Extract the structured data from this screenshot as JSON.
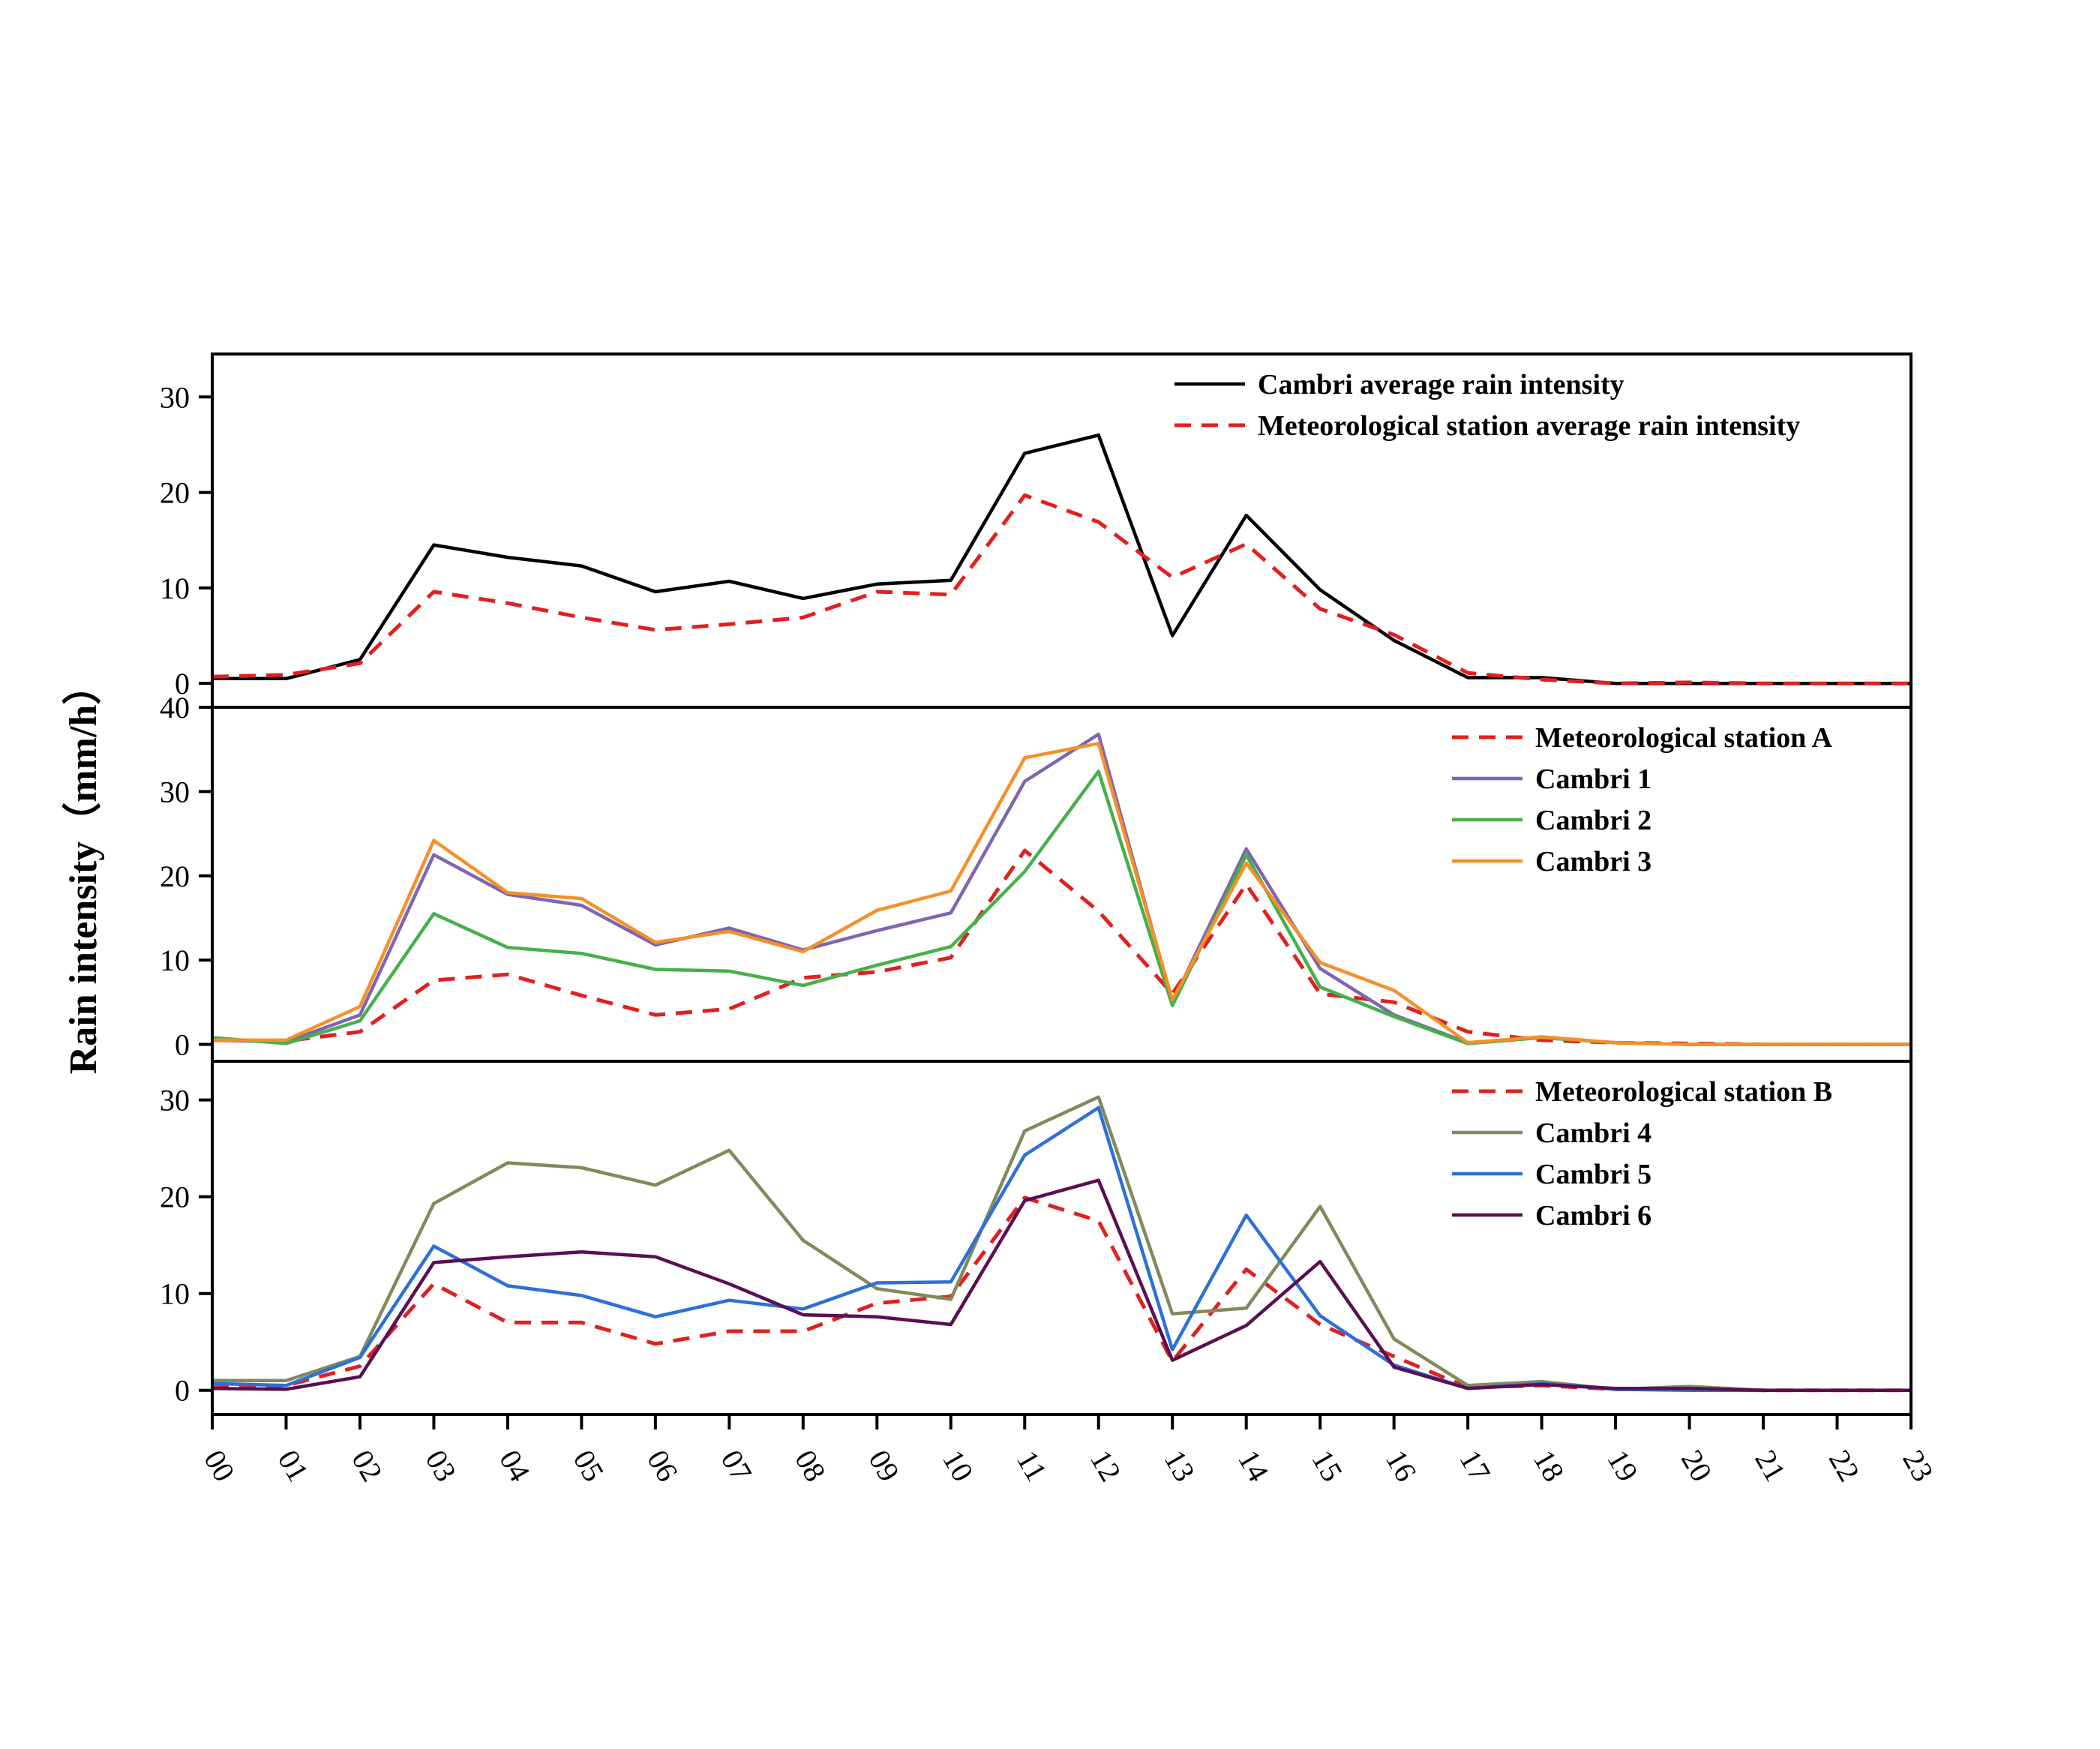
{
  "chart_data": {
    "type": "line",
    "ylabel": "Rain intensity（mm/h）",
    "x": [
      "00",
      "01",
      "02",
      "03",
      "04",
      "05",
      "06",
      "07",
      "08",
      "09",
      "10",
      "11",
      "12",
      "13",
      "14",
      "15",
      "16",
      "17",
      "18",
      "19",
      "20",
      "21",
      "22",
      "23"
    ],
    "colors": {
      "black": "#000000",
      "red": "#e02020",
      "purple": "#7f65b0",
      "green": "#46b04a",
      "orange": "#f4902a",
      "olive": "#818a5c",
      "blue": "#2e6fd8",
      "darkpurple": "#5a0f52"
    },
    "panels": [
      {
        "ylim": [
          -2.5,
          34.5
        ],
        "yticks": [
          0,
          10,
          20,
          30
        ],
        "series": [
          {
            "name": "Cambri average rain intensity",
            "color": "#000000",
            "dashed": false,
            "values": [
              0.5,
              0.5,
              2.5,
              14.5,
              13.2,
              12.3,
              9.6,
              10.7,
              8.9,
              10.4,
              10.8,
              24.1,
              26.0,
              5.0,
              17.6,
              9.8,
              4.5,
              0.6,
              0.6,
              0.0,
              0.0,
              0.0,
              0.0,
              0.0
            ]
          },
          {
            "name": "Meteorological station average rain intensity",
            "color": "#e02020",
            "dashed": true,
            "values": [
              0.7,
              0.9,
              2.1,
              9.6,
              8.4,
              6.9,
              5.6,
              6.2,
              6.9,
              9.6,
              9.3,
              19.7,
              16.9,
              11.1,
              14.6,
              7.8,
              5.1,
              1.1,
              0.4,
              0.0,
              0.1,
              0.0,
              0.0,
              0.0
            ]
          }
        ]
      },
      {
        "ylim": [
          -2,
          40
        ],
        "yticks": [
          0,
          10,
          20,
          30,
          40
        ],
        "series": [
          {
            "name": "Meteorological station A",
            "color": "#e02020",
            "dashed": true,
            "values": [
              0.5,
              0.4,
              1.5,
              7.6,
              8.3,
              5.8,
              3.5,
              4.2,
              7.9,
              8.6,
              10.3,
              23.0,
              15.8,
              6.0,
              19.0,
              6.0,
              5.0,
              1.5,
              0.5,
              0.2,
              0.1,
              0.0,
              0.0,
              0.0
            ]
          },
          {
            "name": "Cambri 1",
            "color": "#7f65b0",
            "dashed": false,
            "values": [
              0.5,
              0.3,
              3.5,
              22.5,
              17.8,
              16.5,
              11.8,
              13.8,
              11.2,
              13.5,
              15.6,
              31.2,
              36.8,
              5.0,
              23.2,
              9.0,
              3.5,
              0.2,
              0.8,
              0.2,
              0.0,
              0.0,
              0.0,
              0.0
            ]
          },
          {
            "name": "Cambri 2",
            "color": "#46b04a",
            "dashed": false,
            "values": [
              0.8,
              0.1,
              2.8,
              15.5,
              11.5,
              10.8,
              8.9,
              8.7,
              7.0,
              9.4,
              11.6,
              20.5,
              32.4,
              4.6,
              22.5,
              6.8,
              3.3,
              0.1,
              0.8,
              0.2,
              0.0,
              0.0,
              0.0,
              0.0
            ]
          },
          {
            "name": "Cambri 3",
            "color": "#f4902a",
            "dashed": false,
            "values": [
              0.5,
              0.5,
              4.5,
              24.2,
              18.0,
              17.3,
              12.1,
              13.4,
              11.0,
              15.9,
              18.2,
              34.0,
              35.7,
              5.3,
              21.5,
              9.7,
              6.4,
              0.2,
              0.9,
              0.2,
              0.0,
              0.0,
              0.0,
              0.0
            ]
          }
        ]
      },
      {
        "ylim": [
          -2.5,
          34
        ],
        "yticks": [
          0,
          10,
          20,
          30
        ],
        "series": [
          {
            "name": "Meteorological station B",
            "color": "#e02020",
            "dashed": true,
            "values": [
              0.3,
              0.5,
              2.5,
              11.0,
              7.0,
              7.0,
              4.8,
              6.1,
              6.1,
              9.0,
              9.7,
              19.9,
              17.5,
              3.0,
              12.5,
              6.8,
              3.5,
              0.3,
              0.5,
              0.1,
              0.1,
              0.0,
              0.0,
              0.0
            ]
          },
          {
            "name": "Cambri 4",
            "color": "#818a5c",
            "dashed": false,
            "values": [
              1.0,
              1.0,
              3.5,
              19.3,
              23.5,
              23.0,
              21.2,
              24.8,
              15.5,
              10.5,
              9.4,
              26.8,
              30.3,
              7.9,
              8.5,
              19.0,
              5.3,
              0.5,
              0.9,
              0.1,
              0.4,
              0.0,
              0.0,
              0.0
            ]
          },
          {
            "name": "Cambri 5",
            "color": "#2e6fd8",
            "dashed": false,
            "values": [
              0.7,
              0.5,
              3.4,
              14.9,
              10.8,
              9.8,
              7.6,
              9.3,
              8.4,
              11.1,
              11.2,
              24.3,
              29.2,
              4.2,
              18.1,
              7.7,
              2.6,
              0.2,
              0.7,
              0.1,
              0.0,
              0.0,
              0.0,
              0.0
            ]
          },
          {
            "name": "Cambri 6",
            "color": "#5a0f52",
            "dashed": false,
            "values": [
              0.2,
              0.1,
              1.4,
              13.2,
              13.8,
              14.3,
              13.8,
              11.0,
              7.8,
              7.6,
              6.8,
              19.6,
              21.7,
              3.1,
              6.7,
              13.3,
              2.4,
              0.2,
              0.6,
              0.2,
              0.2,
              0.0,
              0.0,
              0.0
            ]
          }
        ]
      }
    ]
  }
}
